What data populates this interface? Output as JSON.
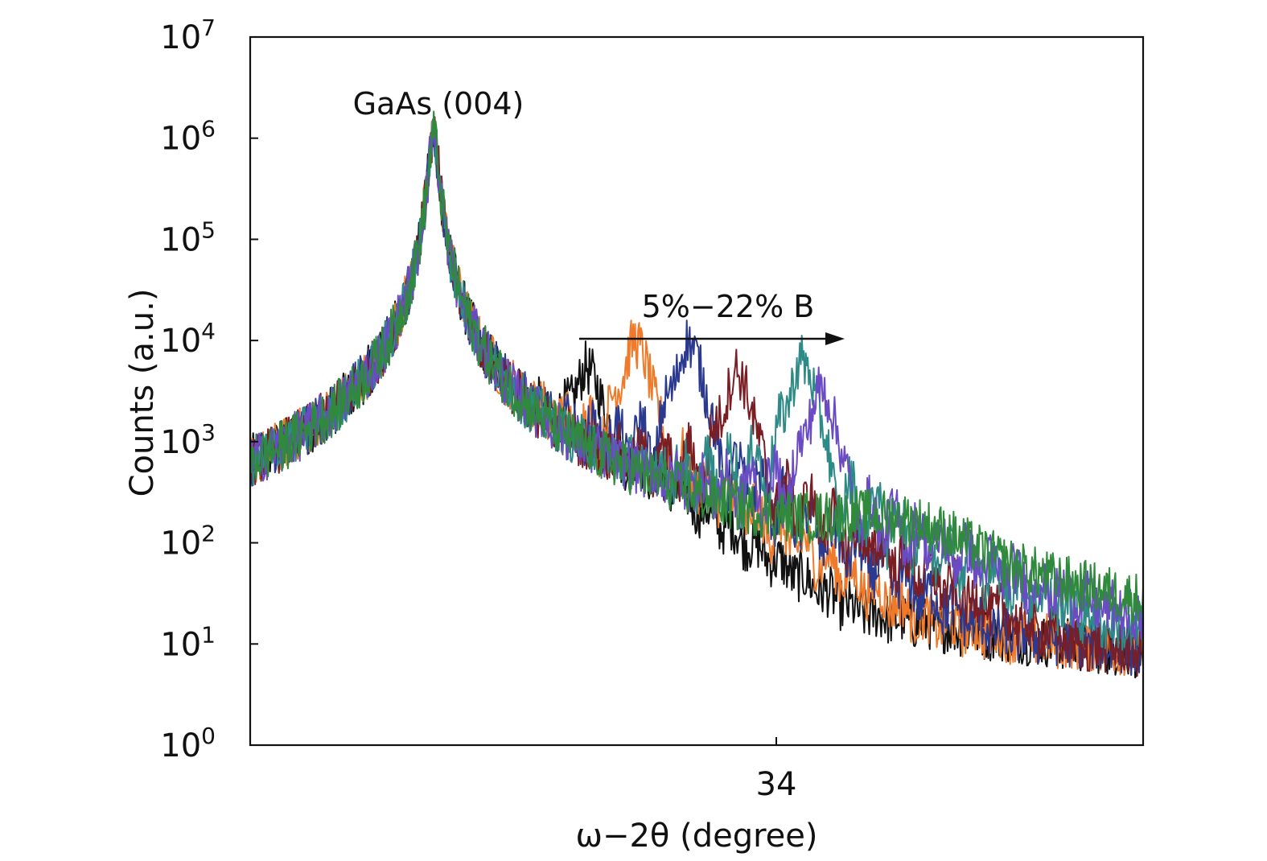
{
  "chart_data": {
    "type": "line",
    "title": "",
    "xlabel": "ω−2θ (degree)",
    "ylabel": "Counts (a.u.)",
    "yscale": "log",
    "xlim": [
      31.6,
      35.3
    ],
    "ylim": [
      1,
      10000000
    ],
    "x_tick_labels": [
      {
        "value": 33.78,
        "label": "34"
      }
    ],
    "y_tick_labels": [
      {
        "exp": "0",
        "value": 1
      },
      {
        "exp": "1",
        "value": 10
      },
      {
        "exp": "2",
        "value": 100
      },
      {
        "exp": "3",
        "value": 1000
      },
      {
        "exp": "4",
        "value": 10000
      },
      {
        "exp": "5",
        "value": 100000
      },
      {
        "exp": "6",
        "value": 1000000
      },
      {
        "exp": "7",
        "value": 10000000
      }
    ],
    "annotations": {
      "substrate_peak": "GaAs (004)",
      "range": "5%−22% B"
    },
    "grid": false,
    "substrate_peak_x": 32.36,
    "substrate_peak_y": 1100000,
    "series": [
      {
        "color": "#111111",
        "peak_x": 33.0,
        "peak_y": 3800,
        "decay": 1.0
      },
      {
        "color": "#f07a2a",
        "peak_x": 33.2,
        "peak_y": 8000,
        "decay": 0.9
      },
      {
        "color": "#2b3a8e",
        "peak_x": 33.42,
        "peak_y": 8000,
        "decay": 0.85
      },
      {
        "color": "#7a1e24",
        "peak_x": 33.62,
        "peak_y": 4000,
        "decay": 0.75
      },
      {
        "color": "#2e8a86",
        "peak_x": 33.89,
        "peak_y": 5200,
        "decay": 0.6
      },
      {
        "color": "#6a4bc4",
        "peak_x": 33.97,
        "peak_y": 2700,
        "decay": 0.45
      },
      {
        "color": "#2f8a3c",
        "peak_x": 34.24,
        "peak_y": 80,
        "decay": 0.3
      }
    ]
  }
}
